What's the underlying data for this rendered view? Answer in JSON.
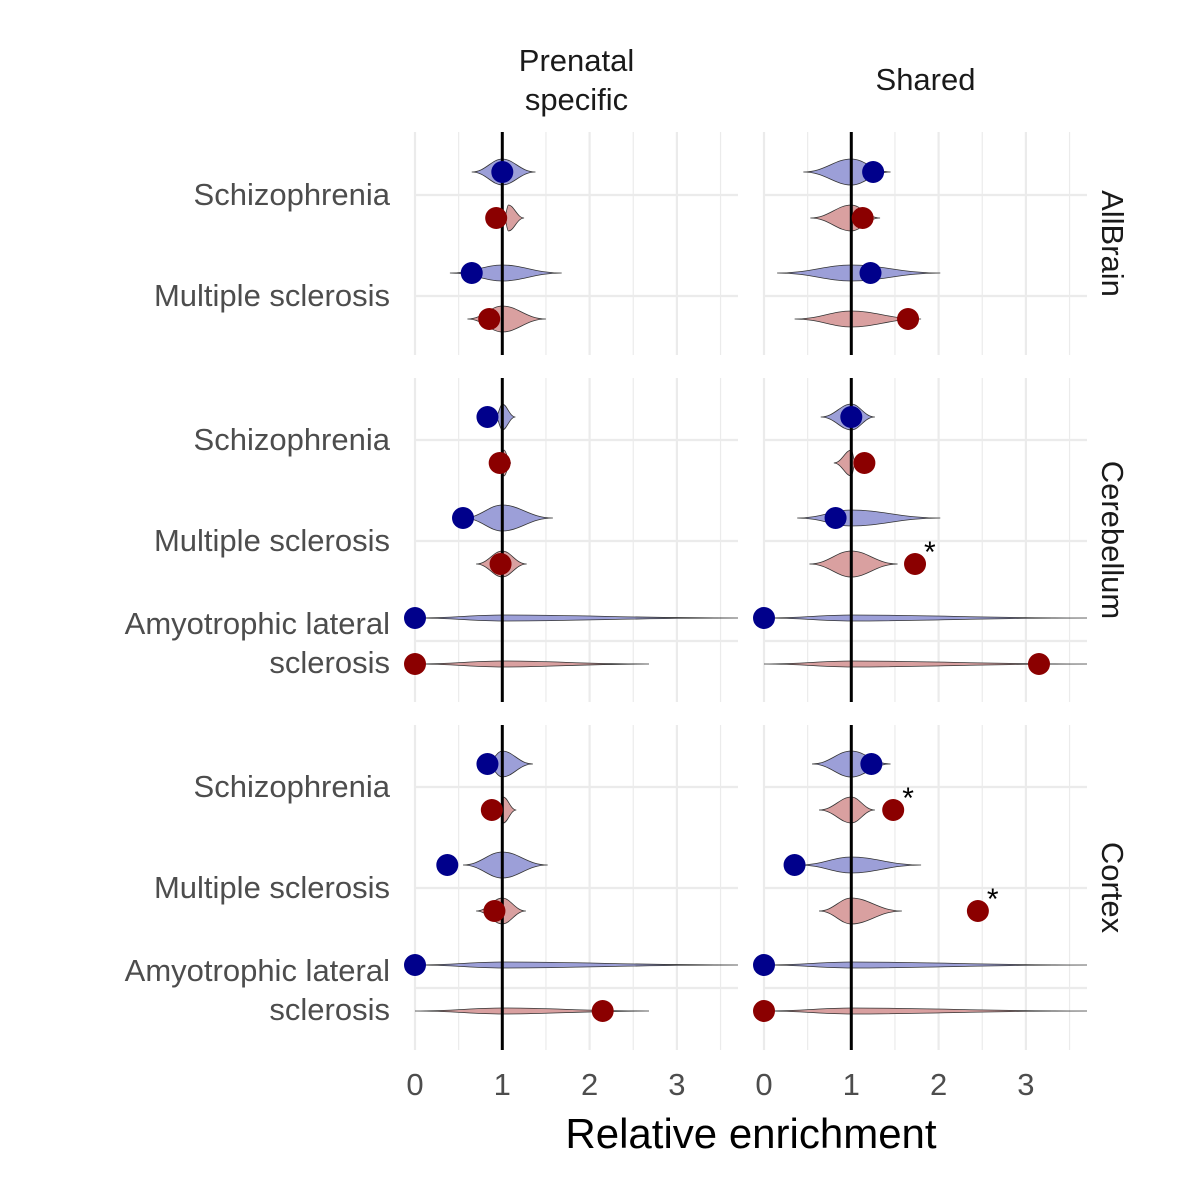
{
  "chart_data": {
    "type": "violin-dot",
    "xlabel": "Relative enrichment",
    "xlim": [
      0,
      3.7
    ],
    "xticks": [
      "0",
      "1",
      "2",
      "3"
    ],
    "reference_line_x": 1,
    "columns": [
      "Prenatal\nspecific",
      "Shared"
    ],
    "rows": [
      {
        "name": "AllBrain",
        "traits": [
          "Schizophrenia",
          "Multiple sclerosis"
        ],
        "panels": [
          {
            "column": "Prenatal specific",
            "points": [
              {
                "trait": "Schizophrenia",
                "group": "blue",
                "value": 1.0,
                "range": [
                  0.65,
                  1.38
                ],
                "star": false
              },
              {
                "trait": "Schizophrenia",
                "group": "red",
                "value": 0.93,
                "range": [
                  1.02,
                  1.25
                ],
                "star": false
              },
              {
                "trait": "Multiple sclerosis",
                "group": "blue",
                "value": 0.65,
                "range": [
                  0.4,
                  1.68
                ],
                "star": false
              },
              {
                "trait": "Multiple sclerosis",
                "group": "red",
                "value": 0.85,
                "range": [
                  0.6,
                  1.5
                ],
                "star": false
              }
            ]
          },
          {
            "column": "Shared",
            "points": [
              {
                "trait": "Schizophrenia",
                "group": "blue",
                "value": 1.25,
                "range": [
                  0.45,
                  1.45
                ],
                "star": false
              },
              {
                "trait": "Schizophrenia",
                "group": "red",
                "value": 1.13,
                "range": [
                  0.53,
                  1.33
                ],
                "star": false
              },
              {
                "trait": "Multiple sclerosis",
                "group": "blue",
                "value": 1.22,
                "range": [
                  0.15,
                  2.02
                ],
                "star": false
              },
              {
                "trait": "Multiple sclerosis",
                "group": "red",
                "value": 1.65,
                "range": [
                  0.35,
                  1.8
                ],
                "star": false
              }
            ]
          }
        ]
      },
      {
        "name": "Cerebellum",
        "traits": [
          "Schizophrenia",
          "Multiple sclerosis",
          "Amyotrophic lateral\nsclerosis"
        ],
        "panels": [
          {
            "column": "Prenatal specific",
            "points": [
              {
                "trait": "Schizophrenia",
                "group": "blue",
                "value": 0.83,
                "range": [
                  0.92,
                  1.15
                ],
                "star": false
              },
              {
                "trait": "Schizophrenia",
                "group": "red",
                "value": 0.97,
                "range": [
                  0.97,
                  1.1
                ],
                "star": false
              },
              {
                "trait": "Multiple sclerosis",
                "group": "blue",
                "value": 0.55,
                "range": [
                  0.55,
                  1.58
                ],
                "star": false
              },
              {
                "trait": "Multiple sclerosis",
                "group": "red",
                "value": 0.98,
                "range": [
                  0.7,
                  1.28
                ],
                "star": false
              },
              {
                "trait": "Amyotrophic lateral\nsclerosis",
                "group": "blue",
                "value": 0.0,
                "range": [
                  0.0,
                  3.7
                ],
                "star": false
              },
              {
                "trait": "Amyotrophic lateral\nsclerosis",
                "group": "red",
                "value": 0.0,
                "range": [
                  0.0,
                  2.68
                ],
                "star": false
              }
            ]
          },
          {
            "column": "Shared",
            "points": [
              {
                "trait": "Schizophrenia",
                "group": "blue",
                "value": 1.0,
                "range": [
                  0.65,
                  1.27
                ],
                "star": false
              },
              {
                "trait": "Schizophrenia",
                "group": "red",
                "value": 1.15,
                "range": [
                  0.8,
                  1.05
                ],
                "star": false
              },
              {
                "trait": "Multiple sclerosis",
                "group": "blue",
                "value": 0.82,
                "range": [
                  0.38,
                  2.02
                ],
                "star": false
              },
              {
                "trait": "Multiple sclerosis",
                "group": "red",
                "value": 1.73,
                "range": [
                  0.52,
                  1.53
                ],
                "star": true
              },
              {
                "trait": "Amyotrophic lateral\nsclerosis",
                "group": "blue",
                "value": 0.0,
                "range": [
                  0.0,
                  3.7
                ],
                "star": false
              },
              {
                "trait": "Amyotrophic lateral\nsclerosis",
                "group": "red",
                "value": 3.15,
                "range": [
                  0.0,
                  3.7
                ],
                "star": false
              }
            ]
          }
        ]
      },
      {
        "name": "Cortex",
        "traits": [
          "Schizophrenia",
          "Multiple sclerosis",
          "Amyotrophic lateral\nsclerosis"
        ],
        "panels": [
          {
            "column": "Prenatal specific",
            "points": [
              {
                "trait": "Schizophrenia",
                "group": "blue",
                "value": 0.83,
                "range": [
                  0.8,
                  1.35
                ],
                "star": false
              },
              {
                "trait": "Schizophrenia",
                "group": "red",
                "value": 0.88,
                "range": [
                  0.96,
                  1.16
                ],
                "star": false
              },
              {
                "trait": "Multiple sclerosis",
                "group": "blue",
                "value": 0.37,
                "range": [
                  0.55,
                  1.52
                ],
                "star": false
              },
              {
                "trait": "Multiple sclerosis",
                "group": "red",
                "value": 0.91,
                "range": [
                  0.7,
                  1.27
                ],
                "star": false
              },
              {
                "trait": "Amyotrophic lateral\nsclerosis",
                "group": "blue",
                "value": 0.0,
                "range": [
                  0.0,
                  3.7
                ],
                "star": false
              },
              {
                "trait": "Amyotrophic lateral\nsclerosis",
                "group": "red",
                "value": 2.15,
                "range": [
                  0.0,
                  2.68
                ],
                "star": false
              }
            ]
          },
          {
            "column": "Shared",
            "points": [
              {
                "trait": "Schizophrenia",
                "group": "blue",
                "value": 1.23,
                "range": [
                  0.55,
                  1.45
                ],
                "star": false
              },
              {
                "trait": "Schizophrenia",
                "group": "red",
                "value": 1.48,
                "range": [
                  0.63,
                  1.27
                ],
                "star": true
              },
              {
                "trait": "Multiple sclerosis",
                "group": "blue",
                "value": 0.35,
                "range": [
                  0.4,
                  1.8
                ],
                "star": false
              },
              {
                "trait": "Multiple sclerosis",
                "group": "red",
                "value": 2.45,
                "range": [
                  0.63,
                  1.58
                ],
                "star": true
              },
              {
                "trait": "Amyotrophic lateral\nsclerosis",
                "group": "blue",
                "value": 0.0,
                "range": [
                  0.0,
                  3.7
                ],
                "star": false
              },
              {
                "trait": "Amyotrophic lateral\nsclerosis",
                "group": "red",
                "value": 0.0,
                "range": [
                  0.0,
                  3.7
                ],
                "star": false
              }
            ]
          }
        ]
      }
    ],
    "colors": {
      "blue_point": "#00008b",
      "red_point": "#8b0000",
      "blue_violin": "#9c9fd8",
      "red_violin": "#d9a0a0",
      "grid": "#ebebeb",
      "ref_line": "#000000",
      "axis_text": "#4d4d4d",
      "strip_text": "#1a1a1a"
    },
    "star_symbol": "*"
  }
}
